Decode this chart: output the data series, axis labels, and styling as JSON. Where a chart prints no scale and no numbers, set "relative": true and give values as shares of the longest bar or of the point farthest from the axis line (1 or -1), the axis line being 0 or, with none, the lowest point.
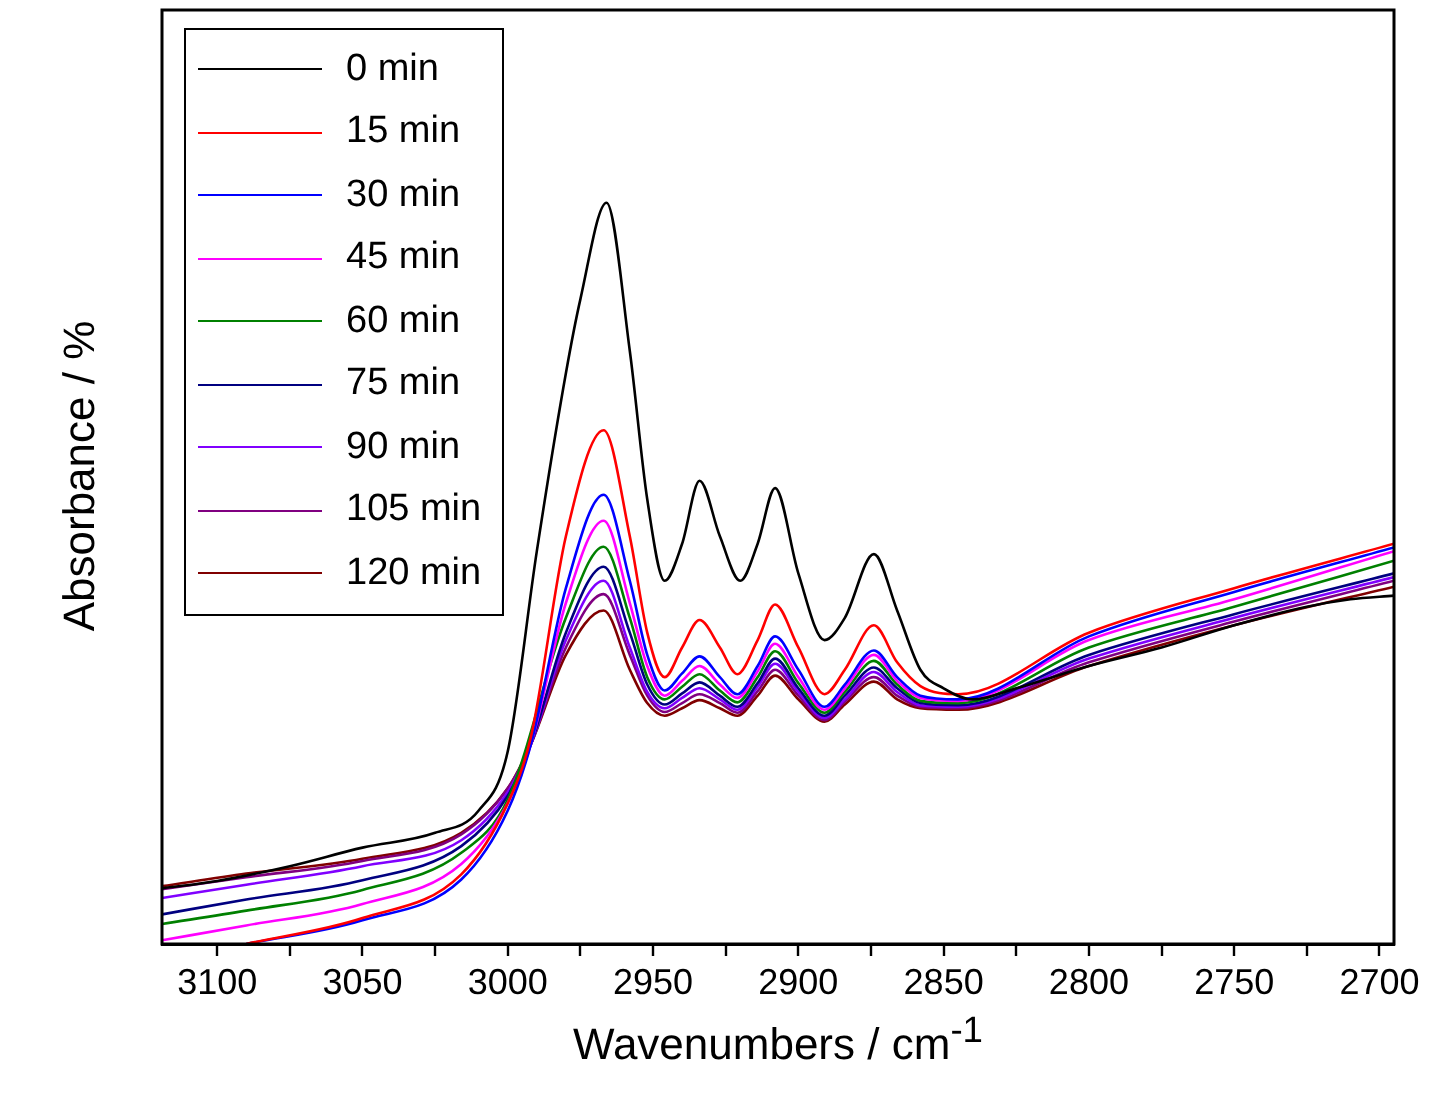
{
  "chart_data": {
    "type": "line",
    "xlabel": "Wavenumbers / cm$^{-1}$",
    "ylabel": "Absorbance / %",
    "relative": true,
    "grid": false,
    "legend": "top left",
    "marker": "none",
    "line_style": "solid",
    "xlim": [
      3119,
      2695
    ],
    "xticks": [
      3100,
      {
        "value": 3075,
        "label": null
      },
      3050,
      {
        "value": 3025,
        "label": null
      },
      3000,
      {
        "value": 2975,
        "label": null
      },
      2950,
      {
        "value": 2925,
        "label": null
      },
      2900,
      {
        "value": 2875,
        "label": null
      },
      2850,
      {
        "value": 2825,
        "label": null
      },
      2800,
      {
        "value": 2775,
        "label": null
      },
      2750,
      {
        "value": 2725,
        "label": null
      },
      2700
    ],
    "x": [
      3119,
      3090,
      3050,
      3016,
      3000,
      2992,
      2980,
      2967,
      2958,
      2952,
      2946,
      2940,
      2934,
      2927,
      2921,
      2914,
      2908,
      2900,
      2891,
      2884,
      2874,
      2866,
      2858,
      2845,
      2800,
      2750,
      2695
    ],
    "series": [
      {
        "name": "0 min",
        "color": "#000000",
        "x": [
          3119,
          3100,
          3075,
          3050,
          3025,
          3010,
          3000,
          2990,
          2980,
          2975,
          2966,
          2958,
          2952,
          2946,
          2940,
          2934,
          2927,
          2920,
          2914,
          2908,
          2900,
          2891,
          2884,
          2874,
          2866,
          2858,
          2850,
          2840,
          2825,
          2800,
          2775,
          2750,
          2725,
          2710,
          2695
        ],
        "values": [
          0.075,
          0.085,
          0.105,
          0.13,
          0.15,
          0.18,
          0.26,
          0.53,
          0.77,
          0.87,
          1.0,
          0.8,
          0.6,
          0.49,
          0.54,
          0.625,
          0.55,
          0.49,
          0.54,
          0.615,
          0.5,
          0.41,
          0.44,
          0.526,
          0.45,
          0.37,
          0.345,
          0.33,
          0.345,
          0.375,
          0.4,
          0.43,
          0.455,
          0.465,
          0.47
        ]
      },
      {
        "name": "15 min",
        "color": "#ff0000",
        "values": [
          null,
          0.0,
          0.035,
          0.094,
          0.19,
          0.28,
          0.55,
          0.693,
          0.55,
          0.42,
          0.36,
          0.4,
          0.437,
          0.4,
          0.364,
          0.41,
          0.458,
          0.4,
          0.337,
          0.37,
          0.43,
          0.38,
          0.348,
          0.337,
          0.42,
          0.48,
          0.54
        ]
      },
      {
        "name": "30 min",
        "color": "#0000ff",
        "values": [
          null,
          0.0,
          0.032,
          0.087,
          0.18,
          0.27,
          0.48,
          0.606,
          0.49,
          0.39,
          0.342,
          0.365,
          0.388,
          0.36,
          0.337,
          0.375,
          0.415,
          0.37,
          0.32,
          0.35,
          0.396,
          0.36,
          0.335,
          0.33,
          0.415,
          0.475,
          0.535
        ]
      },
      {
        "name": "45 min",
        "color": "#ff00ff",
        "values": [
          0.005,
          0.025,
          0.054,
          0.108,
          0.19,
          0.27,
          0.46,
          0.571,
          0.46,
          0.375,
          0.335,
          0.355,
          0.375,
          0.35,
          0.332,
          0.368,
          0.405,
          0.36,
          0.316,
          0.345,
          0.39,
          0.355,
          0.332,
          0.328,
          0.41,
          0.465,
          0.53
        ]
      },
      {
        "name": "60 min",
        "color": "#008000",
        "values": [
          0.027,
          0.045,
          0.073,
          0.123,
          0.195,
          null,
          0.44,
          0.536,
          0.44,
          0.36,
          0.33,
          0.347,
          0.364,
          0.342,
          0.326,
          0.36,
          0.395,
          0.352,
          0.312,
          0.34,
          0.382,
          0.35,
          0.328,
          0.325,
          0.4,
          0.455,
          0.517
        ]
      },
      {
        "name": "75 min",
        "color": "#000080",
        "values": [
          0.04,
          0.06,
          0.086,
          0.132,
          0.2,
          0.27,
          0.42,
          0.509,
          0.42,
          0.35,
          0.323,
          0.338,
          0.353,
          0.335,
          0.32,
          0.352,
          0.385,
          0.345,
          0.308,
          0.335,
          0.373,
          0.345,
          0.325,
          0.322,
          0.39,
          0.445,
          0.5
        ]
      },
      {
        "name": "90 min",
        "color": "#8000ff",
        "values": [
          0.062,
          0.08,
          0.105,
          0.14,
          0.205,
          0.27,
          0.41,
          0.49,
          0.4,
          0.34,
          0.318,
          0.332,
          0.345,
          0.33,
          0.316,
          0.347,
          0.378,
          0.34,
          0.305,
          0.33,
          0.367,
          0.34,
          0.322,
          0.32,
          0.385,
          0.44,
          0.495
        ]
      },
      {
        "name": "105 min",
        "color": "#800080",
        "values": [
          0.074,
          0.09,
          0.112,
          0.148,
          0.21,
          0.27,
          0.4,
          0.472,
          0.39,
          0.335,
          0.313,
          0.325,
          0.337,
          0.325,
          0.312,
          0.341,
          0.37,
          0.335,
          0.302,
          0.327,
          0.36,
          0.335,
          0.32,
          0.318,
          0.38,
          0.435,
          0.49
        ]
      },
      {
        "name": "120 min",
        "color": "#800000",
        "values": [
          0.078,
          0.095,
          0.115,
          0.15,
          0.21,
          0.27,
          0.39,
          0.45,
          0.37,
          0.325,
          0.308,
          0.318,
          0.329,
          0.318,
          0.308,
          0.335,
          0.362,
          0.33,
          0.3,
          0.323,
          0.354,
          0.33,
          0.318,
          0.316,
          0.375,
          0.43,
          0.482
        ]
      }
    ]
  }
}
